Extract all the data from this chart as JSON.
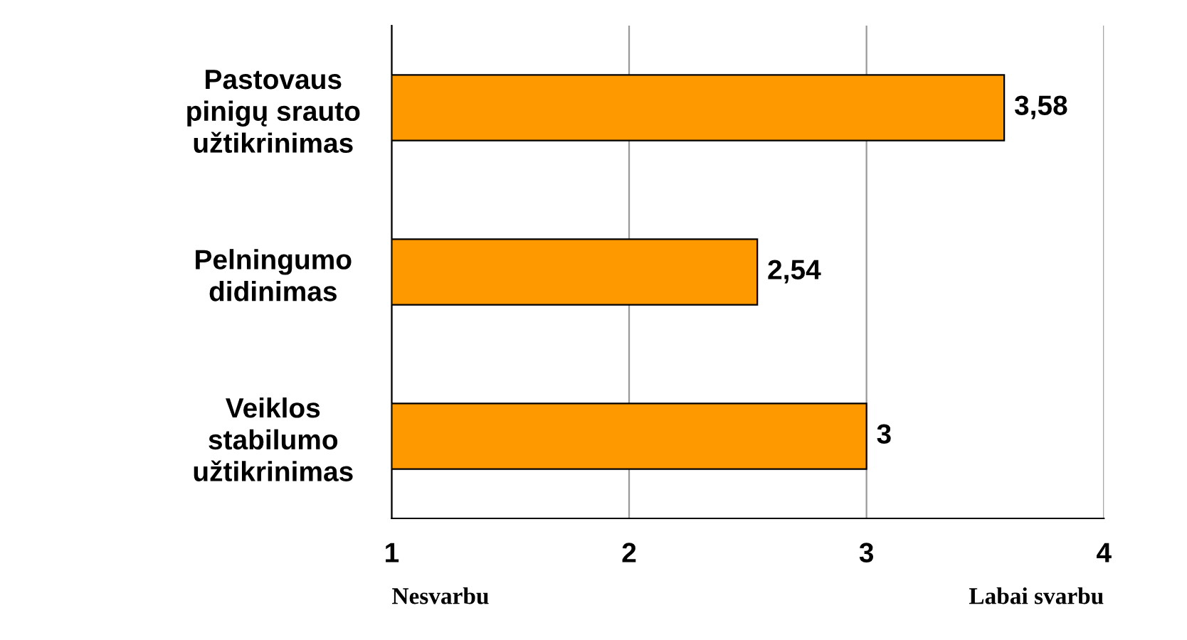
{
  "chart_data": {
    "type": "bar",
    "orientation": "horizontal",
    "categories": [
      "Pastovaus\npinigų srauto\nužtikrinimas",
      "Pelningumo\ndidinimas",
      "Veiklos\nstabilumo\nužtikrinimas"
    ],
    "values": [
      3.58,
      2.54,
      3
    ],
    "color": "#ff9900",
    "value_labels": [
      "3,58",
      "2,54",
      "3"
    ],
    "xlim": [
      1,
      4
    ],
    "xticks": [
      1,
      2,
      3,
      4
    ],
    "grid": "x",
    "annotations": [
      "Nesvarbu",
      "Labai svarbu"
    ]
  }
}
